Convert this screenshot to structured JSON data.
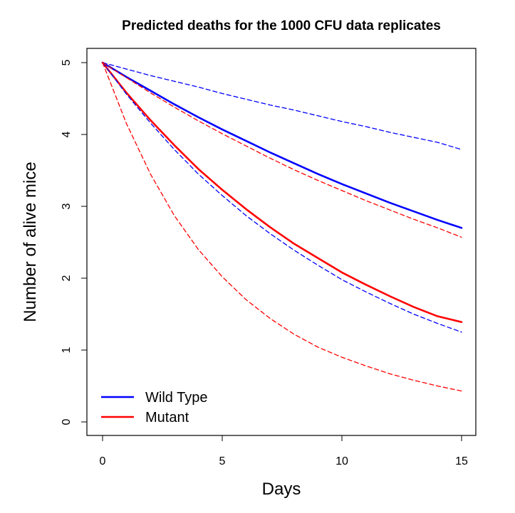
{
  "chart_data": {
    "type": "line",
    "title": "Predicted deaths for the 1000 CFU data replicates",
    "xlabel": "Days",
    "ylabel": "Number of alive mice",
    "xlim": [
      0,
      15
    ],
    "ylim": [
      0,
      5
    ],
    "x_ticks": [
      0,
      5,
      10,
      15
    ],
    "y_ticks": [
      0,
      1,
      2,
      3,
      4,
      5
    ],
    "grid": false,
    "legend_position": "bottom-left",
    "x": [
      0,
      1,
      2,
      3,
      4,
      5,
      6,
      7,
      8,
      9,
      10,
      11,
      12,
      13,
      14,
      15
    ],
    "series": [
      {
        "name": "Wild Type",
        "color": "#0000ff",
        "style": "solid",
        "values": [
          5.0,
          4.8,
          4.61,
          4.42,
          4.24,
          4.07,
          3.91,
          3.75,
          3.6,
          3.45,
          3.31,
          3.18,
          3.05,
          2.93,
          2.81,
          2.7
        ]
      },
      {
        "name": "Mutant",
        "color": "#ff0000",
        "style": "solid",
        "values": [
          5.0,
          4.58,
          4.2,
          3.85,
          3.52,
          3.23,
          2.96,
          2.71,
          2.48,
          2.28,
          2.08,
          1.91,
          1.75,
          1.6,
          1.47,
          1.39
        ]
      },
      {
        "color": "#0000ff",
        "style": "dashed",
        "values": [
          5.0,
          4.91,
          4.82,
          4.74,
          4.66,
          4.57,
          4.49,
          4.41,
          4.34,
          4.26,
          4.18,
          4.11,
          4.03,
          3.96,
          3.89,
          3.79
        ]
      },
      {
        "color": "#0000ff",
        "style": "dashed",
        "values": [
          5.0,
          4.56,
          4.16,
          3.79,
          3.45,
          3.15,
          2.87,
          2.62,
          2.39,
          2.18,
          1.98,
          1.81,
          1.65,
          1.5,
          1.37,
          1.25
        ]
      },
      {
        "color": "#ff0000",
        "style": "dashed",
        "values": [
          5.0,
          4.79,
          4.58,
          4.38,
          4.19,
          4.01,
          3.84,
          3.67,
          3.51,
          3.36,
          3.22,
          3.08,
          2.95,
          2.82,
          2.7,
          2.57
        ]
      },
      {
        "color": "#ff0000",
        "style": "dashed",
        "values": [
          5.0,
          4.15,
          3.45,
          2.87,
          2.4,
          2.02,
          1.7,
          1.44,
          1.22,
          1.04,
          0.9,
          0.78,
          0.67,
          0.58,
          0.5,
          0.43
        ]
      }
    ],
    "legend": [
      {
        "label": "Wild Type",
        "color": "#0000ff"
      },
      {
        "label": "Mutant",
        "color": "#ff0000"
      }
    ]
  }
}
